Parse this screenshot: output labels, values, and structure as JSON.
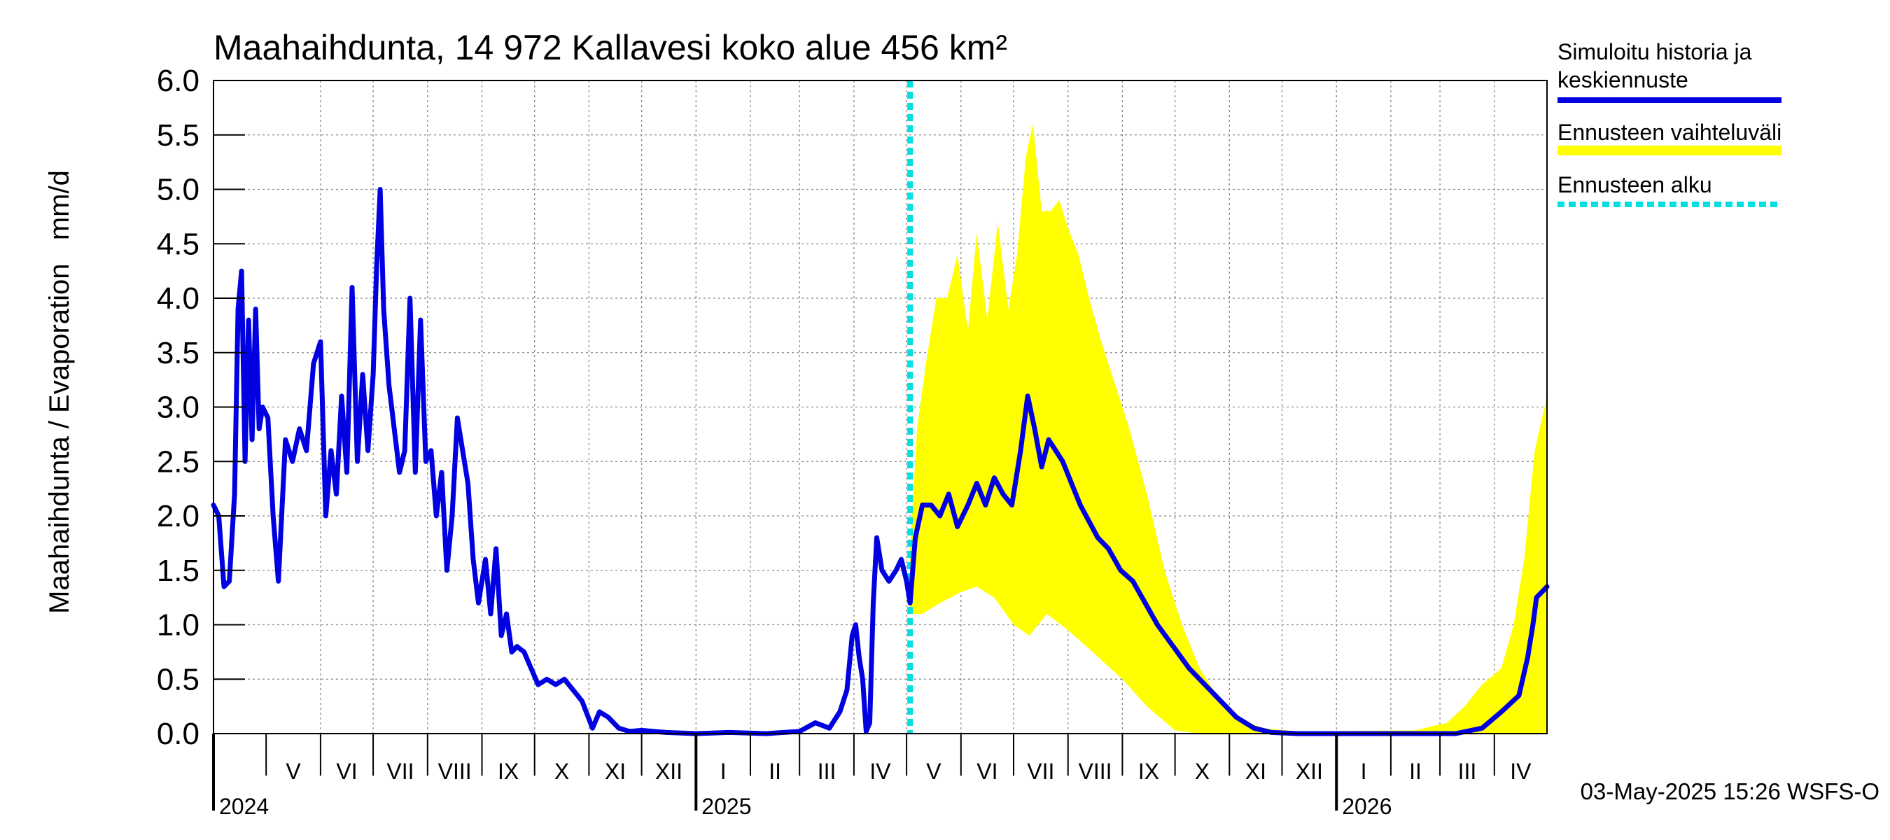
{
  "chart_data": {
    "type": "line",
    "title": "Maahaihdunta, 14 972 Kallavesi koko alue 456 km²",
    "ylabel": "Maahaihdunta / Evaporation   mm/d",
    "ylim": [
      0,
      6.0
    ],
    "yticks": [
      "0.0",
      "0.5",
      "1.0",
      "1.5",
      "2.0",
      "2.5",
      "3.0",
      "3.5",
      "4.0",
      "4.5",
      "5.0",
      "5.5",
      "6.0"
    ],
    "xlim": [
      "2024-04-01",
      "2026-05-01"
    ],
    "months": [
      {
        "label": "V",
        "start": "2024-05-01",
        "end": "2024-06-01"
      },
      {
        "label": "VI",
        "start": "2024-06-01",
        "end": "2024-07-01"
      },
      {
        "label": "VII",
        "start": "2024-07-01",
        "end": "2024-08-01"
      },
      {
        "label": "VIII",
        "start": "2024-08-01",
        "end": "2024-09-01"
      },
      {
        "label": "IX",
        "start": "2024-09-01",
        "end": "2024-10-01"
      },
      {
        "label": "X",
        "start": "2024-10-01",
        "end": "2024-11-01"
      },
      {
        "label": "XI",
        "start": "2024-11-01",
        "end": "2024-12-01"
      },
      {
        "label": "XII",
        "start": "2024-12-01",
        "end": "2025-01-01"
      },
      {
        "label": "I",
        "start": "2025-01-01",
        "end": "2025-02-01"
      },
      {
        "label": "II",
        "start": "2025-02-01",
        "end": "2025-03-01"
      },
      {
        "label": "III",
        "start": "2025-03-01",
        "end": "2025-04-01"
      },
      {
        "label": "IV",
        "start": "2025-04-01",
        "end": "2025-05-01"
      },
      {
        "label": "V",
        "start": "2025-05-01",
        "end": "2025-06-01"
      },
      {
        "label": "VI",
        "start": "2025-06-01",
        "end": "2025-07-01"
      },
      {
        "label": "VII",
        "start": "2025-07-01",
        "end": "2025-08-01"
      },
      {
        "label": "VIII",
        "start": "2025-08-01",
        "end": "2025-09-01"
      },
      {
        "label": "IX",
        "start": "2025-09-01",
        "end": "2025-10-01"
      },
      {
        "label": "X",
        "start": "2025-10-01",
        "end": "2025-11-01"
      },
      {
        "label": "XI",
        "start": "2025-11-01",
        "end": "2025-12-01"
      },
      {
        "label": "XII",
        "start": "2025-12-01",
        "end": "2026-01-01"
      },
      {
        "label": "I",
        "start": "2026-01-01",
        "end": "2026-02-01"
      },
      {
        "label": "II",
        "start": "2026-02-01",
        "end": "2026-03-01"
      },
      {
        "label": "III",
        "start": "2026-03-01",
        "end": "2026-04-01"
      },
      {
        "label": "IV",
        "start": "2026-04-01",
        "end": "2026-05-01"
      }
    ],
    "years": [
      {
        "label": "2024",
        "date": "2024-04-01"
      },
      {
        "label": "2025",
        "date": "2025-01-01"
      },
      {
        "label": "2026",
        "date": "2026-01-01"
      }
    ],
    "forecast_start": "2025-05-03",
    "legend": {
      "placement": "right",
      "entries": [
        {
          "label_line1": "Simuloitu historia ja",
          "label_line2": "keskiennuste",
          "color": "#0000e0",
          "style": "solid"
        },
        {
          "label_line1": "Ennusteen vaihteluväli",
          "label_line2": "",
          "color": "#ffff00",
          "style": "band"
        },
        {
          "label_line1": "Ennusteen alku",
          "label_line2": "",
          "color": "#00e0e0",
          "style": "dashed"
        }
      ]
    },
    "series": [
      {
        "name": "Simuloitu historia ja keskiennuste",
        "color": "#0000e0",
        "points": [
          [
            "2024-04-01",
            2.1
          ],
          [
            "2024-04-04",
            2.0
          ],
          [
            "2024-04-07",
            1.35
          ],
          [
            "2024-04-10",
            1.4
          ],
          [
            "2024-04-13",
            2.2
          ],
          [
            "2024-04-15",
            3.9
          ],
          [
            "2024-04-17",
            4.25
          ],
          [
            "2024-04-19",
            2.5
          ],
          [
            "2024-04-21",
            3.8
          ],
          [
            "2024-04-23",
            2.7
          ],
          [
            "2024-04-25",
            3.9
          ],
          [
            "2024-04-27",
            2.8
          ],
          [
            "2024-04-29",
            3.0
          ],
          [
            "2024-05-02",
            2.9
          ],
          [
            "2024-05-05",
            2.0
          ],
          [
            "2024-05-08",
            1.4
          ],
          [
            "2024-05-12",
            2.7
          ],
          [
            "2024-05-16",
            2.5
          ],
          [
            "2024-05-20",
            2.8
          ],
          [
            "2024-05-24",
            2.6
          ],
          [
            "2024-05-28",
            3.4
          ],
          [
            "2024-06-01",
            3.6
          ],
          [
            "2024-06-04",
            2.0
          ],
          [
            "2024-06-07",
            2.6
          ],
          [
            "2024-06-10",
            2.2
          ],
          [
            "2024-06-13",
            3.1
          ],
          [
            "2024-06-16",
            2.4
          ],
          [
            "2024-06-19",
            4.1
          ],
          [
            "2024-06-22",
            2.5
          ],
          [
            "2024-06-25",
            3.3
          ],
          [
            "2024-06-28",
            2.6
          ],
          [
            "2024-07-01",
            3.3
          ],
          [
            "2024-07-03",
            4.3
          ],
          [
            "2024-07-05",
            5.0
          ],
          [
            "2024-07-07",
            3.9
          ],
          [
            "2024-07-10",
            3.2
          ],
          [
            "2024-07-13",
            2.8
          ],
          [
            "2024-07-16",
            2.4
          ],
          [
            "2024-07-19",
            2.6
          ],
          [
            "2024-07-22",
            4.0
          ],
          [
            "2024-07-25",
            2.4
          ],
          [
            "2024-07-28",
            3.8
          ],
          [
            "2024-07-31",
            2.5
          ],
          [
            "2024-08-03",
            2.6
          ],
          [
            "2024-08-06",
            2.0
          ],
          [
            "2024-08-09",
            2.4
          ],
          [
            "2024-08-12",
            1.5
          ],
          [
            "2024-08-15",
            2.0
          ],
          [
            "2024-08-18",
            2.9
          ],
          [
            "2024-08-21",
            2.6
          ],
          [
            "2024-08-24",
            2.3
          ],
          [
            "2024-08-27",
            1.6
          ],
          [
            "2024-08-30",
            1.2
          ],
          [
            "2024-09-03",
            1.6
          ],
          [
            "2024-09-06",
            1.1
          ],
          [
            "2024-09-09",
            1.7
          ],
          [
            "2024-09-12",
            0.9
          ],
          [
            "2024-09-15",
            1.1
          ],
          [
            "2024-09-18",
            0.75
          ],
          [
            "2024-09-21",
            0.8
          ],
          [
            "2024-09-25",
            0.75
          ],
          [
            "2024-09-29",
            0.6
          ],
          [
            "2024-10-03",
            0.45
          ],
          [
            "2024-10-08",
            0.5
          ],
          [
            "2024-10-13",
            0.45
          ],
          [
            "2024-10-18",
            0.5
          ],
          [
            "2024-10-23",
            0.4
          ],
          [
            "2024-10-28",
            0.3
          ],
          [
            "2024-11-03",
            0.05
          ],
          [
            "2024-11-07",
            0.2
          ],
          [
            "2024-11-12",
            0.15
          ],
          [
            "2024-11-18",
            0.05
          ],
          [
            "2024-11-24",
            0.02
          ],
          [
            "2024-12-01",
            0.03
          ],
          [
            "2024-12-15",
            0.01
          ],
          [
            "2025-01-01",
            0.0
          ],
          [
            "2025-01-20",
            0.01
          ],
          [
            "2025-02-10",
            0.0
          ],
          [
            "2025-03-01",
            0.02
          ],
          [
            "2025-03-10",
            0.1
          ],
          [
            "2025-03-18",
            0.05
          ],
          [
            "2025-03-24",
            0.2
          ],
          [
            "2025-03-28",
            0.4
          ],
          [
            "2025-03-31",
            0.9
          ],
          [
            "2025-04-02",
            1.0
          ],
          [
            "2025-04-04",
            0.7
          ],
          [
            "2025-04-06",
            0.5
          ],
          [
            "2025-04-08",
            0.02
          ],
          [
            "2025-04-10",
            0.1
          ],
          [
            "2025-04-12",
            1.2
          ],
          [
            "2025-04-14",
            1.8
          ],
          [
            "2025-04-17",
            1.5
          ],
          [
            "2025-04-21",
            1.4
          ],
          [
            "2025-04-25",
            1.5
          ],
          [
            "2025-04-28",
            1.6
          ],
          [
            "2025-05-01",
            1.4
          ],
          [
            "2025-05-03",
            1.2
          ],
          [
            "2025-05-06",
            1.8
          ],
          [
            "2025-05-10",
            2.1
          ],
          [
            "2025-05-15",
            2.1
          ],
          [
            "2025-05-20",
            2.0
          ],
          [
            "2025-05-25",
            2.2
          ],
          [
            "2025-05-30",
            1.9
          ],
          [
            "2025-06-05",
            2.1
          ],
          [
            "2025-06-10",
            2.3
          ],
          [
            "2025-06-15",
            2.1
          ],
          [
            "2025-06-20",
            2.35
          ],
          [
            "2025-06-25",
            2.2
          ],
          [
            "2025-06-30",
            2.1
          ],
          [
            "2025-07-05",
            2.6
          ],
          [
            "2025-07-09",
            3.1
          ],
          [
            "2025-07-13",
            2.8
          ],
          [
            "2025-07-17",
            2.45
          ],
          [
            "2025-07-21",
            2.7
          ],
          [
            "2025-07-25",
            2.6
          ],
          [
            "2025-07-29",
            2.5
          ],
          [
            "2025-08-03",
            2.3
          ],
          [
            "2025-08-08",
            2.1
          ],
          [
            "2025-08-13",
            1.95
          ],
          [
            "2025-08-18",
            1.8
          ],
          [
            "2025-08-24",
            1.7
          ],
          [
            "2025-08-31",
            1.5
          ],
          [
            "2025-09-07",
            1.4
          ],
          [
            "2025-09-14",
            1.2
          ],
          [
            "2025-09-21",
            1.0
          ],
          [
            "2025-09-30",
            0.8
          ],
          [
            "2025-10-09",
            0.6
          ],
          [
            "2025-10-18",
            0.45
          ],
          [
            "2025-10-27",
            0.3
          ],
          [
            "2025-11-05",
            0.15
          ],
          [
            "2025-11-15",
            0.05
          ],
          [
            "2025-11-25",
            0.01
          ],
          [
            "2025-12-10",
            0.0
          ],
          [
            "2026-03-10",
            0.0
          ],
          [
            "2026-03-25",
            0.05
          ],
          [
            "2026-04-05",
            0.2
          ],
          [
            "2026-04-15",
            0.35
          ],
          [
            "2026-04-20",
            0.7
          ],
          [
            "2026-04-23",
            1.0
          ],
          [
            "2026-04-25",
            1.25
          ],
          [
            "2026-04-28",
            1.3
          ],
          [
            "2026-05-01",
            1.35
          ]
        ]
      }
    ],
    "band": {
      "name": "Ennusteen vaihteluväli",
      "color": "#ffff00",
      "upper": [
        [
          "2025-05-03",
          1.7
        ],
        [
          "2025-05-07",
          2.8
        ],
        [
          "2025-05-12",
          3.4
        ],
        [
          "2025-05-18",
          4.0
        ],
        [
          "2025-05-24",
          4.0
        ],
        [
          "2025-05-30",
          4.4
        ],
        [
          "2025-06-05",
          3.7
        ],
        [
          "2025-06-10",
          4.6
        ],
        [
          "2025-06-16",
          3.8
        ],
        [
          "2025-06-22",
          4.7
        ],
        [
          "2025-06-28",
          3.9
        ],
        [
          "2025-07-03",
          4.4
        ],
        [
          "2025-07-08",
          5.3
        ],
        [
          "2025-07-12",
          5.6
        ],
        [
          "2025-07-17",
          4.8
        ],
        [
          "2025-07-22",
          4.8
        ],
        [
          "2025-07-27",
          4.9
        ],
        [
          "2025-08-02",
          4.6
        ],
        [
          "2025-08-07",
          4.4
        ],
        [
          "2025-08-13",
          4.0
        ],
        [
          "2025-08-20",
          3.6
        ],
        [
          "2025-08-28",
          3.2
        ],
        [
          "2025-09-05",
          2.8
        ],
        [
          "2025-09-15",
          2.2
        ],
        [
          "2025-09-25",
          1.5
        ],
        [
          "2025-10-05",
          1.0
        ],
        [
          "2025-10-15",
          0.6
        ],
        [
          "2025-10-25",
          0.35
        ],
        [
          "2025-11-05",
          0.15
        ],
        [
          "2025-11-20",
          0.05
        ],
        [
          "2025-12-10",
          0.02
        ],
        [
          "2026-02-15",
          0.03
        ],
        [
          "2026-03-05",
          0.1
        ],
        [
          "2026-03-15",
          0.25
        ],
        [
          "2026-03-25",
          0.45
        ],
        [
          "2026-04-05",
          0.6
        ],
        [
          "2026-04-12",
          1.0
        ],
        [
          "2026-04-18",
          1.6
        ],
        [
          "2026-04-24",
          2.6
        ],
        [
          "2026-05-01",
          3.1
        ]
      ],
      "lower": [
        [
          "2026-05-01",
          0.0
        ],
        [
          "2026-03-01",
          0.0
        ],
        [
          "2025-11-01",
          0.0
        ],
        [
          "2025-10-15",
          0.0
        ],
        [
          "2025-10-01",
          0.03
        ],
        [
          "2025-09-15",
          0.25
        ],
        [
          "2025-09-01",
          0.5
        ],
        [
          "2025-08-15",
          0.75
        ],
        [
          "2025-08-01",
          0.95
        ],
        [
          "2025-07-20",
          1.1
        ],
        [
          "2025-07-10",
          0.9
        ],
        [
          "2025-07-01",
          1.0
        ],
        [
          "2025-06-20",
          1.25
        ],
        [
          "2025-06-10",
          1.35
        ],
        [
          "2025-06-01",
          1.3
        ],
        [
          "2025-05-20",
          1.2
        ],
        [
          "2025-05-10",
          1.1
        ],
        [
          "2025-05-03",
          1.1
        ]
      ]
    },
    "footer": "03-May-2025 15:26 WSFS-O"
  }
}
